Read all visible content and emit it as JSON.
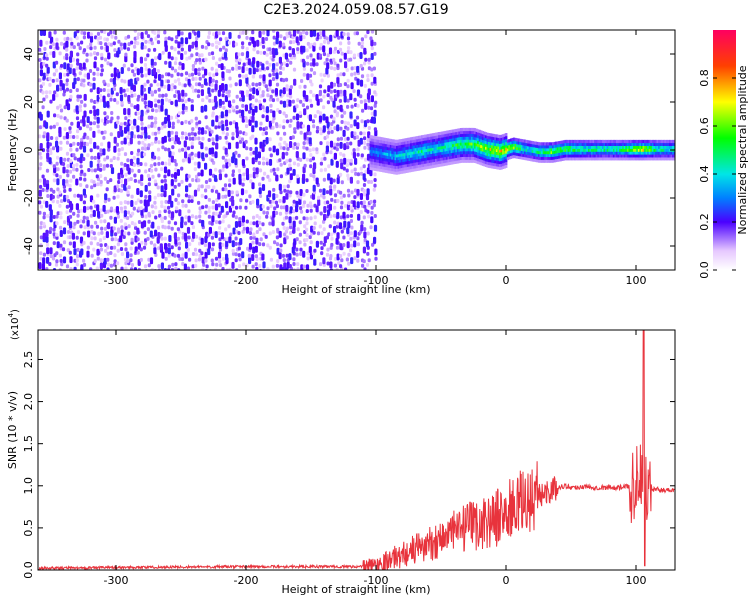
{
  "title": "C2E3.2024.059.08.57.G19",
  "chart_data": [
    {
      "type": "heatmap",
      "xlabel": "Height of straight line (km)",
      "ylabel": "Frequency (Hz)",
      "xlim": [
        -360,
        130
      ],
      "ylim": [
        -50,
        50
      ],
      "xticks": [
        -300,
        -200,
        -100,
        0,
        100
      ],
      "yticks": [
        -40,
        -20,
        0,
        20,
        40
      ],
      "noise_region_x": [
        -360,
        -100
      ],
      "signal_trace": {
        "x": [
          -105,
          -95,
          -85,
          -75,
          -65,
          -55,
          -45,
          -35,
          -25,
          -15,
          -5,
          5,
          15,
          25,
          35,
          45,
          55,
          65,
          75,
          85,
          95,
          105,
          115,
          125
        ],
        "freq": [
          0,
          -1,
          -2,
          -1,
          0,
          1,
          2,
          3,
          3,
          1,
          0,
          2,
          1,
          0,
          0,
          1,
          1,
          1,
          1,
          1,
          1,
          1,
          1,
          1
        ],
        "amplitude": [
          0.35,
          0.4,
          0.45,
          0.5,
          0.55,
          0.5,
          0.6,
          0.65,
          0.7,
          0.85,
          0.9,
          0.85,
          0.55,
          0.6,
          0.8,
          0.75,
          0.65,
          0.6,
          0.6,
          0.6,
          0.75,
          0.9,
          0.6,
          0.55
        ]
      },
      "colorbar": {
        "label": "Normalized spectral amplitude",
        "range": [
          0,
          1
        ],
        "ticks": [
          "0.0",
          "0.2",
          "0.4",
          "0.6",
          "0.8"
        ]
      }
    },
    {
      "type": "line",
      "xlabel": "Height of straight line (km)",
      "ylabel": "SNR (10 * v/v)",
      "yscale_label": "(x10",
      "yscale_exp": "4",
      "yscale_close": ")",
      "xlim": [
        -360,
        130
      ],
      "ylim": [
        0,
        2.85
      ],
      "xticks": [
        -300,
        -200,
        -100,
        0,
        100
      ],
      "yticks": [
        "0.0",
        "0.5",
        "1.0",
        "1.5",
        "2.0",
        "2.5"
      ],
      "series": [
        {
          "color": "#e8333c",
          "x": [
            -360,
            -300,
            -200,
            -110,
            -100,
            -90,
            -80,
            -70,
            -60,
            -50,
            -40,
            -30,
            -20,
            -10,
            0,
            10,
            20,
            30,
            40,
            45,
            50,
            60,
            70,
            80,
            90,
            95,
            100,
            103,
            105,
            107,
            110,
            120,
            130
          ],
          "y": [
            0.02,
            0.03,
            0.04,
            0.04,
            0.06,
            0.12,
            0.18,
            0.25,
            0.3,
            0.38,
            0.45,
            0.5,
            0.55,
            0.6,
            0.68,
            0.78,
            0.85,
            0.92,
            0.98,
            1.0,
            0.98,
            0.99,
            0.98,
            0.98,
            0.98,
            1.0,
            1.1,
            0.95,
            1.2,
            0.95,
            0.96,
            0.95,
            0.95
          ]
        }
      ]
    }
  ],
  "colors": {
    "line": "#e8333c",
    "axis": "#000000"
  }
}
